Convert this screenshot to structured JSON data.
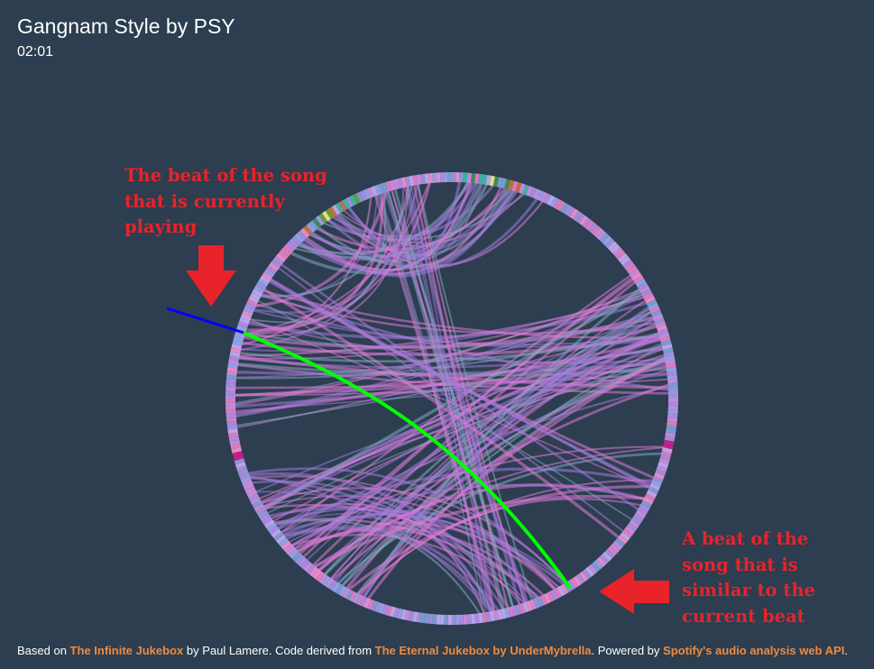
{
  "header": {
    "title": "Gangnam Style by PSY",
    "time": "02:01"
  },
  "annotations": {
    "current_beat": [
      "The beat of the song",
      "that is currently",
      "playing"
    ],
    "similar_beat": [
      "A beat of the",
      "song that is",
      "similar to the",
      "current beat"
    ]
  },
  "footer": {
    "text_1": "Based on ",
    "link_1": "The Infinite Jukebox",
    "text_2": " by Paul Lamere. Code derived from ",
    "link_2": "The Eternal Jukebox by UnderMybrella",
    "text_3": ". Powered by ",
    "link_3": "Spotify's audio analysis web API",
    "text_4": "."
  },
  "colors": {
    "background": "#2c3e50",
    "link": "#f08a3e",
    "annotation": "#e8232a",
    "current_edge": "#00ff00",
    "pointer": "#0000ff",
    "edge_pink": "#e07ad6",
    "edge_purple": "#a07ad8",
    "edge_teal": "#7fa8bc"
  },
  "icons": {
    "down_arrow": "down-arrow-icon",
    "left_arrow": "left-arrow-icon"
  }
}
